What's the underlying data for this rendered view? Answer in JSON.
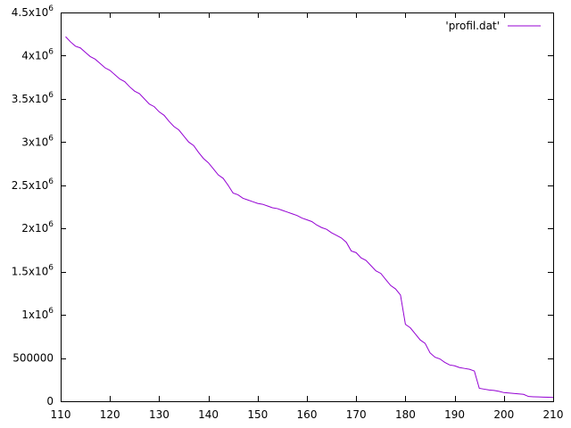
{
  "chart_data": {
    "type": "line",
    "title": "",
    "xlabel": "",
    "ylabel": "",
    "xlim": [
      110,
      210
    ],
    "ylim": [
      0,
      4500000
    ],
    "grid": false,
    "legend_position": "top-right",
    "x_ticks": [
      {
        "value": 110,
        "label": "110"
      },
      {
        "value": 120,
        "label": "120"
      },
      {
        "value": 130,
        "label": "130"
      },
      {
        "value": 140,
        "label": "140"
      },
      {
        "value": 150,
        "label": "150"
      },
      {
        "value": 160,
        "label": "160"
      },
      {
        "value": 170,
        "label": "170"
      },
      {
        "value": 180,
        "label": "180"
      },
      {
        "value": 190,
        "label": "190"
      },
      {
        "value": 200,
        "label": "200"
      },
      {
        "value": 210,
        "label": "210"
      }
    ],
    "y_ticks": [
      {
        "value": 0,
        "label": "0",
        "mantissa": "",
        "exp": ""
      },
      {
        "value": 500000,
        "label": "500000",
        "mantissa": "",
        "exp": ""
      },
      {
        "value": 1000000,
        "label": "",
        "mantissa": "1x10",
        "exp": "6"
      },
      {
        "value": 1500000,
        "label": "",
        "mantissa": "1.5x10",
        "exp": "6"
      },
      {
        "value": 2000000,
        "label": "",
        "mantissa": "2x10",
        "exp": "6"
      },
      {
        "value": 2500000,
        "label": "",
        "mantissa": "2.5x10",
        "exp": "6"
      },
      {
        "value": 3000000,
        "label": "",
        "mantissa": "3x10",
        "exp": "6"
      },
      {
        "value": 3500000,
        "label": "",
        "mantissa": "3.5x10",
        "exp": "6"
      },
      {
        "value": 4000000,
        "label": "",
        "mantissa": "4x10",
        "exp": "6"
      },
      {
        "value": 4500000,
        "label": "",
        "mantissa": "4.5x10",
        "exp": "6"
      }
    ],
    "series": [
      {
        "name": "'profil.dat'",
        "color": "#9400d3",
        "x": [
          111,
          112,
          113,
          114,
          115,
          116,
          117,
          118,
          119,
          120,
          121,
          122,
          123,
          124,
          125,
          126,
          127,
          128,
          129,
          130,
          131,
          132,
          133,
          134,
          135,
          136,
          137,
          138,
          139,
          140,
          141,
          142,
          143,
          144,
          145,
          146,
          147,
          148,
          149,
          150,
          151,
          152,
          153,
          154,
          155,
          156,
          157,
          158,
          159,
          160,
          161,
          162,
          163,
          164,
          165,
          166,
          167,
          168,
          169,
          170,
          171,
          172,
          173,
          174,
          175,
          176,
          177,
          178,
          179,
          180,
          181,
          182,
          183,
          184,
          185,
          186,
          187,
          188,
          189,
          190,
          191,
          192,
          193,
          194,
          195,
          196,
          197,
          198,
          199,
          200,
          201,
          202,
          203,
          204,
          205,
          206,
          207,
          208,
          209,
          210
        ],
        "y": [
          4220000,
          4160000,
          4110000,
          4090000,
          4040000,
          3990000,
          3960000,
          3910000,
          3860000,
          3830000,
          3780000,
          3730000,
          3700000,
          3640000,
          3590000,
          3560000,
          3500000,
          3440000,
          3410000,
          3350000,
          3310000,
          3240000,
          3180000,
          3140000,
          3070000,
          3000000,
          2960000,
          2880000,
          2810000,
          2760000,
          2690000,
          2620000,
          2580000,
          2500000,
          2410000,
          2390000,
          2350000,
          2330000,
          2310000,
          2290000,
          2280000,
          2260000,
          2240000,
          2230000,
          2210000,
          2190000,
          2170000,
          2150000,
          2120000,
          2100000,
          2080000,
          2040000,
          2010000,
          1990000,
          1950000,
          1920000,
          1890000,
          1840000,
          1740000,
          1720000,
          1660000,
          1630000,
          1570000,
          1510000,
          1480000,
          1410000,
          1340000,
          1300000,
          1230000,
          890000,
          850000,
          780000,
          710000,
          670000,
          560000,
          510000,
          490000,
          450000,
          420000,
          410000,
          390000,
          380000,
          370000,
          350000,
          150000,
          140000,
          130000,
          125000,
          115000,
          100000,
          95000,
          90000,
          85000,
          80000,
          55000,
          52000,
          50000,
          48000,
          46000,
          44000
        ]
      }
    ]
  }
}
